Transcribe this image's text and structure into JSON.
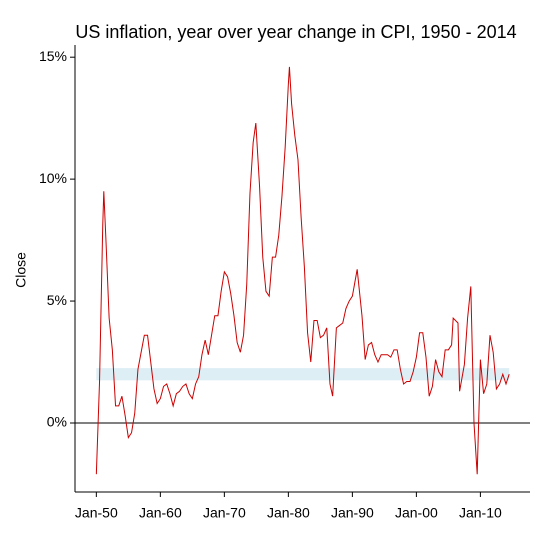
{
  "chart_data": {
    "type": "line",
    "title": "US inflation, year over year change in CPI, 1950 - 2014",
    "y_label": "Close",
    "color": "#cc0000",
    "band": [
      1.75,
      2.25
    ],
    "band_color": "#ddeef5",
    "hline": 0,
    "xlim": [
      "1946-09",
      "2017-10"
    ],
    "ylim": [
      -2.83,
      15.5
    ],
    "xticks": [
      {
        "value": "1950-01",
        "label": "Jan-50"
      },
      {
        "value": "1960-01",
        "label": "Jan-60"
      },
      {
        "value": "1970-01",
        "label": "Jan-70"
      },
      {
        "value": "1980-01",
        "label": "Jan-80"
      },
      {
        "value": "1990-01",
        "label": "Jan-90"
      },
      {
        "value": "2000-01",
        "label": "Jan-00"
      },
      {
        "value": "2010-01",
        "label": "Jan-10"
      }
    ],
    "yticks": [
      {
        "value": 0,
        "label": "0%"
      },
      {
        "value": 5,
        "label": "5%"
      },
      {
        "value": 10,
        "label": "10%"
      },
      {
        "value": 15,
        "label": "15%"
      }
    ],
    "x": [
      "1950-01",
      "1950-07",
      "1951-01",
      "1951-03",
      "1951-07",
      "1952-01",
      "1952-07",
      "1953-01",
      "1953-07",
      "1954-01",
      "1954-07",
      "1955-01",
      "1955-07",
      "1956-01",
      "1956-07",
      "1957-01",
      "1957-07",
      "1958-01",
      "1958-07",
      "1959-01",
      "1959-07",
      "1960-01",
      "1960-07",
      "1961-01",
      "1961-07",
      "1962-01",
      "1962-07",
      "1963-01",
      "1963-07",
      "1964-01",
      "1964-07",
      "1965-01",
      "1965-07",
      "1966-01",
      "1966-07",
      "1967-01",
      "1967-07",
      "1968-01",
      "1968-07",
      "1969-01",
      "1969-07",
      "1970-01",
      "1970-07",
      "1971-01",
      "1971-07",
      "1972-01",
      "1972-07",
      "1973-01",
      "1973-07",
      "1974-01",
      "1974-07",
      "1974-12",
      "1975-07",
      "1976-01",
      "1976-07",
      "1977-01",
      "1977-07",
      "1978-01",
      "1978-07",
      "1979-01",
      "1979-07",
      "1980-01",
      "1980-03",
      "1980-07",
      "1981-01",
      "1981-07",
      "1982-01",
      "1982-07",
      "1983-01",
      "1983-07",
      "1984-01",
      "1984-07",
      "1985-01",
      "1985-07",
      "1986-01",
      "1986-07",
      "1986-12",
      "1987-07",
      "1988-01",
      "1988-07",
      "1989-01",
      "1989-07",
      "1990-01",
      "1990-10",
      "1991-07",
      "1992-01",
      "1992-07",
      "1993-01",
      "1993-07",
      "1994-01",
      "1994-07",
      "1995-01",
      "1995-07",
      "1996-01",
      "1996-07",
      "1997-01",
      "1997-07",
      "1998-01",
      "1998-07",
      "1999-01",
      "1999-07",
      "2000-01",
      "2000-07",
      "2001-01",
      "2001-07",
      "2002-01",
      "2002-07",
      "2003-01",
      "2003-07",
      "2004-01",
      "2004-07",
      "2005-01",
      "2005-07",
      "2005-10",
      "2006-07",
      "2006-10",
      "2007-07",
      "2008-01",
      "2008-07",
      "2009-01",
      "2009-07",
      "2010-01",
      "2010-07",
      "2011-01",
      "2011-07",
      "2012-01",
      "2012-07",
      "2013-01",
      "2013-07",
      "2014-01",
      "2014-07"
    ],
    "values": [
      -2.1,
      1.7,
      8.1,
      9.5,
      7.5,
      4.3,
      3.0,
      0.7,
      0.7,
      1.1,
      0.3,
      -0.6,
      -0.4,
      0.4,
      2.2,
      2.9,
      3.6,
      3.6,
      2.5,
      1.4,
      0.8,
      1.0,
      1.5,
      1.6,
      1.2,
      0.7,
      1.2,
      1.3,
      1.5,
      1.6,
      1.2,
      1.0,
      1.6,
      1.9,
      2.8,
      3.4,
      2.8,
      3.6,
      4.4,
      4.4,
      5.4,
      6.2,
      6.0,
      5.3,
      4.4,
      3.3,
      2.9,
      3.6,
      5.7,
      9.4,
      11.5,
      12.3,
      9.7,
      6.8,
      5.4,
      5.2,
      6.8,
      6.8,
      7.7,
      9.3,
      11.3,
      13.9,
      14.6,
      13.1,
      11.8,
      10.8,
      8.4,
      6.4,
      3.7,
      2.5,
      4.2,
      4.2,
      3.5,
      3.6,
      3.9,
      1.6,
      1.1,
      3.9,
      4.0,
      4.1,
      4.7,
      5.0,
      5.2,
      6.3,
      4.4,
      2.6,
      3.2,
      3.3,
      2.8,
      2.5,
      2.8,
      2.8,
      2.8,
      2.7,
      3.0,
      3.0,
      2.2,
      1.6,
      1.7,
      1.7,
      2.1,
      2.7,
      3.7,
      3.7,
      2.7,
      1.1,
      1.5,
      2.6,
      2.1,
      1.9,
      3.0,
      3.0,
      3.2,
      4.3,
      4.1,
      1.3,
      2.4,
      4.3,
      5.6,
      0.0,
      -2.1,
      2.6,
      1.2,
      1.6,
      3.6,
      2.9,
      1.4,
      1.6,
      2.0,
      1.6,
      2.0
    ]
  }
}
